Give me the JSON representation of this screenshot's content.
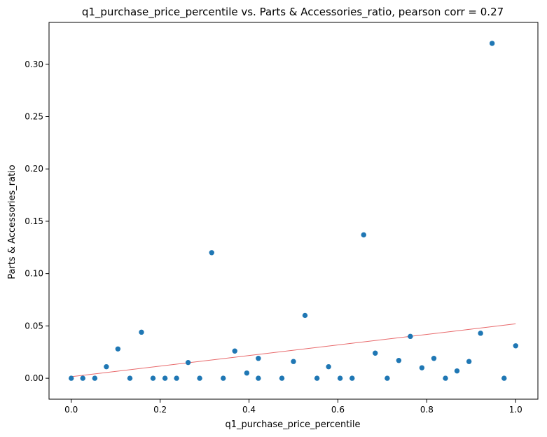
{
  "chart_data": {
    "type": "scatter",
    "title": "q1_purchase_price_percentile vs. Parts & Accessories_ratio, pearson corr = 0.27",
    "xlabel": "q1_purchase_price_percentile",
    "ylabel": "Parts & Accessories_ratio",
    "xlim": [
      -0.05,
      1.05
    ],
    "ylim": [
      -0.02,
      0.34
    ],
    "x_ticks": [
      0.0,
      0.2,
      0.4,
      0.6,
      0.8,
      1.0
    ],
    "x_tick_labels": [
      "0.0",
      "0.2",
      "0.4",
      "0.6",
      "0.8",
      "1.0"
    ],
    "y_ticks": [
      0.0,
      0.05,
      0.1,
      0.15,
      0.2,
      0.25,
      0.3
    ],
    "y_tick_labels": [
      "0.00",
      "0.05",
      "0.10",
      "0.15",
      "0.20",
      "0.25",
      "0.30"
    ],
    "grid": false,
    "point_color": "#1f77b4",
    "trendline_color": "#e8696b",
    "trendline": {
      "x": [
        0.0,
        1.0
      ],
      "y": [
        0.0015,
        0.052
      ]
    },
    "points": [
      {
        "x": 0.0,
        "y": 0.0
      },
      {
        "x": 0.026,
        "y": 0.0
      },
      {
        "x": 0.053,
        "y": 0.0
      },
      {
        "x": 0.079,
        "y": 0.011
      },
      {
        "x": 0.105,
        "y": 0.028
      },
      {
        "x": 0.132,
        "y": 0.0
      },
      {
        "x": 0.158,
        "y": 0.044
      },
      {
        "x": 0.184,
        "y": 0.0
      },
      {
        "x": 0.211,
        "y": 0.0
      },
      {
        "x": 0.237,
        "y": 0.0
      },
      {
        "x": 0.263,
        "y": 0.015
      },
      {
        "x": 0.289,
        "y": 0.0
      },
      {
        "x": 0.316,
        "y": 0.12
      },
      {
        "x": 0.342,
        "y": 0.0
      },
      {
        "x": 0.368,
        "y": 0.026
      },
      {
        "x": 0.395,
        "y": 0.005
      },
      {
        "x": 0.421,
        "y": 0.019
      },
      {
        "x": 0.421,
        "y": 0.0
      },
      {
        "x": 0.474,
        "y": 0.0
      },
      {
        "x": 0.5,
        "y": 0.016
      },
      {
        "x": 0.526,
        "y": 0.06
      },
      {
        "x": 0.553,
        "y": 0.0
      },
      {
        "x": 0.579,
        "y": 0.011
      },
      {
        "x": 0.605,
        "y": 0.0
      },
      {
        "x": 0.632,
        "y": 0.0
      },
      {
        "x": 0.658,
        "y": 0.137
      },
      {
        "x": 0.684,
        "y": 0.024
      },
      {
        "x": 0.711,
        "y": 0.0
      },
      {
        "x": 0.737,
        "y": 0.017
      },
      {
        "x": 0.763,
        "y": 0.04
      },
      {
        "x": 0.789,
        "y": 0.01
      },
      {
        "x": 0.816,
        "y": 0.019
      },
      {
        "x": 0.842,
        "y": 0.0
      },
      {
        "x": 0.868,
        "y": 0.007
      },
      {
        "x": 0.895,
        "y": 0.016
      },
      {
        "x": 0.921,
        "y": 0.043
      },
      {
        "x": 0.947,
        "y": 0.32
      },
      {
        "x": 0.974,
        "y": 0.0
      },
      {
        "x": 1.0,
        "y": 0.031
      }
    ]
  }
}
